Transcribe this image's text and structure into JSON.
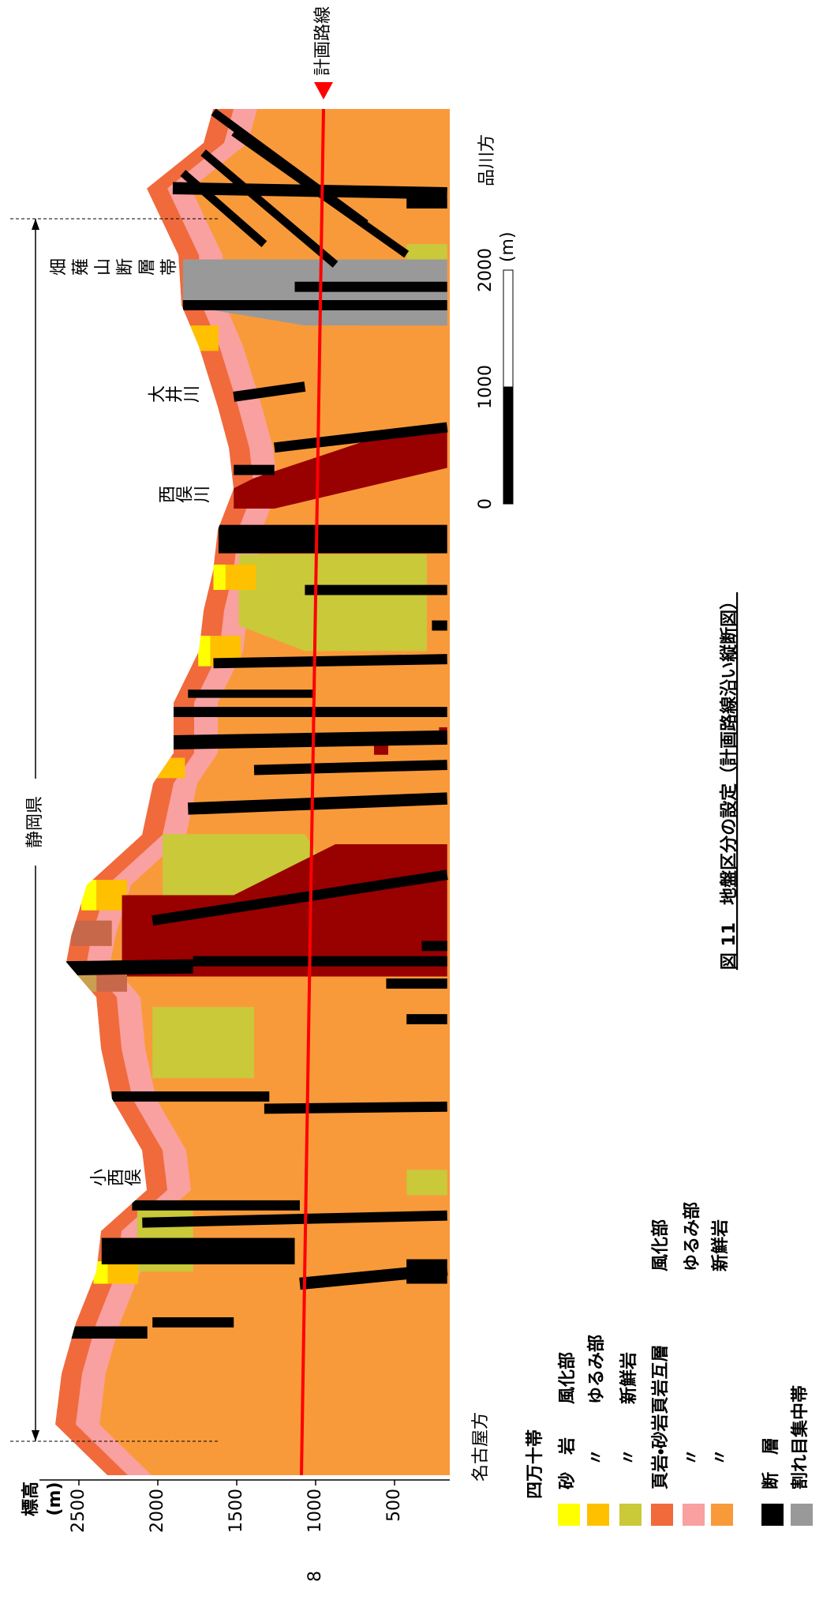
{
  "figure": {
    "elevation_axis": {
      "label": "標高",
      "unit": "(m)",
      "lim": [
        150,
        2750
      ],
      "ticks": [
        2500,
        2000,
        1500,
        1000,
        500
      ]
    },
    "distance_lim": [
      0,
      11690
    ],
    "direction_start": "名古屋方",
    "direction_end": "品川方",
    "prefecture": "静岡県",
    "place_labels": [
      "小西俣",
      "西俣川",
      "大井川",
      "畑薙山断層帯"
    ],
    "surface": {
      "distance": [
        0,
        435,
        870,
        1300,
        1740,
        2090,
        2440,
        2780,
        3220,
        3650,
        4090,
        4390,
        4610,
        5050,
        5480,
        5920,
        6180,
        6610,
        7050,
        7400,
        7740,
        8090,
        8440,
        8790,
        9140,
        9660,
        10010,
        10440,
        11010,
        11400,
        11690
      ],
      "elevation": [
        2320,
        2650,
        2610,
        2520,
        2390,
        2360,
        2070,
        2100,
        2290,
        2360,
        2390,
        2580,
        2550,
        2450,
        2100,
        2030,
        1900,
        1900,
        1740,
        1710,
        1650,
        1620,
        1520,
        1550,
        1620,
        1740,
        1850,
        1870,
        2070,
        1710,
        1650
      ]
    },
    "route": {
      "label": "計画路線",
      "color": "#ff0000",
      "distance": [
        0,
        11690
      ],
      "elevation": [
        1090,
        950
      ]
    },
    "scale_bar": {
      "ticks": [
        0,
        1000,
        2000
      ],
      "unit": "(m)"
    },
    "caption": "図 11　地盤区分の設定（計画路線沿い縦断図）"
  },
  "legend": {
    "title": "四万十帯",
    "items": [
      {
        "rock": "砂　岩",
        "state": "風化部",
        "color": "#ffff00"
      },
      {
        "rock": "〃",
        "state": "ゆるみ部",
        "color": "#ffc000"
      },
      {
        "rock": "〃",
        "state": "新鮮岩",
        "color": "#c9c93a"
      },
      {
        "rock": "頁岩・砂岩頁岩互層",
        "state": "風化部",
        "color": "#f06a3c"
      },
      {
        "rock": "〃",
        "state": "ゆるみ部",
        "color": "#f9a0a0"
      },
      {
        "rock": "〃",
        "state": "新鮮岩",
        "color": "#f99a3a"
      },
      {
        "rock": "断　層",
        "color": "#000000"
      },
      {
        "rock": "割れ目集中帯",
        "color": "#999999"
      }
    ]
  },
  "page_number": "8"
}
